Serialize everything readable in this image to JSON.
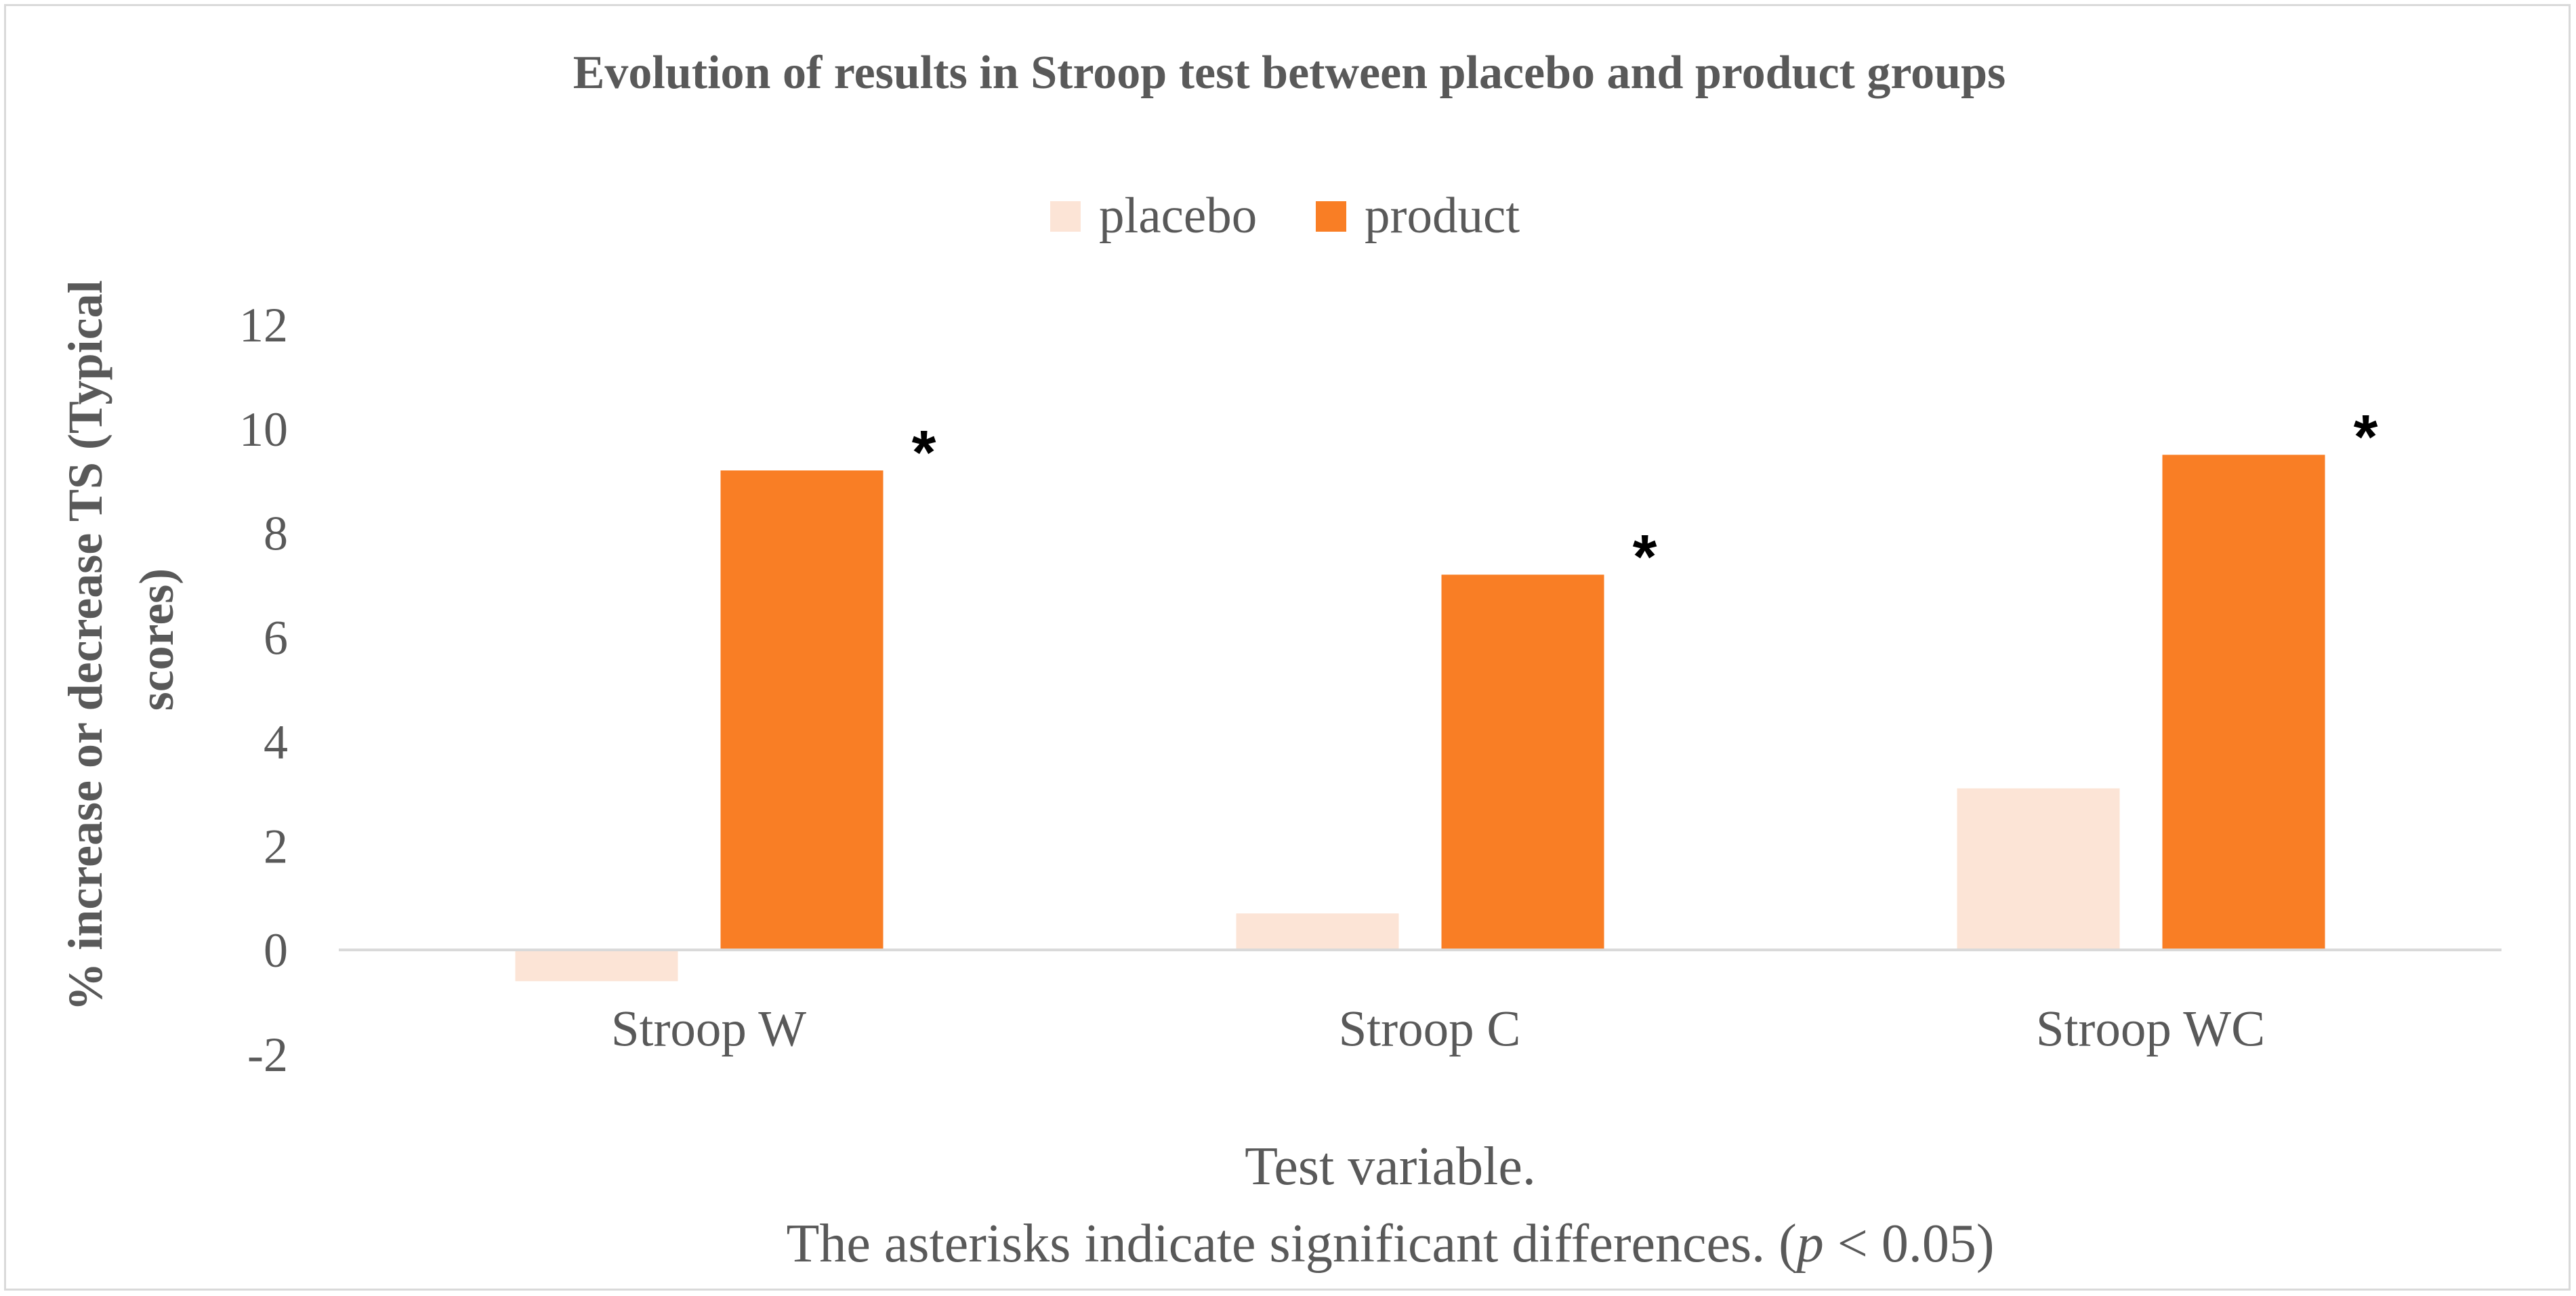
{
  "chart_data": {
    "type": "bar",
    "title": "Evolution of results in Stroop test between placebo and product groups",
    "categories": [
      "Stroop W",
      "Stroop C",
      "Stroop WC"
    ],
    "series": [
      {
        "name": "placebo",
        "values": [
          -0.6,
          0.7,
          3.1
        ],
        "color": "#fce4d6"
      },
      {
        "name": "product",
        "values": [
          9.2,
          7.2,
          9.5
        ],
        "color": "#f97e25"
      }
    ],
    "ylim": [
      -2,
      12
    ],
    "yticks": [
      -2,
      0,
      2,
      4,
      6,
      8,
      10,
      12
    ],
    "ylabel_lines": [
      "% increase or decrease  TS (Typical",
      "scores)"
    ],
    "xlabel": "Test variable.",
    "note": {
      "before": "The asterisks indicate significant differences. (",
      "italic": "p",
      "after": " < 0.05)"
    },
    "significance": [
      {
        "category": "Stroop W",
        "series": "product",
        "marker": "*"
      },
      {
        "category": "Stroop C",
        "series": "product",
        "marker": "*"
      },
      {
        "category": "Stroop WC",
        "series": "product",
        "marker": "*"
      }
    ],
    "legend_position": "top-center",
    "grid": false,
    "colors": {
      "axis": "#d9d9d9",
      "text": "#595959"
    }
  }
}
